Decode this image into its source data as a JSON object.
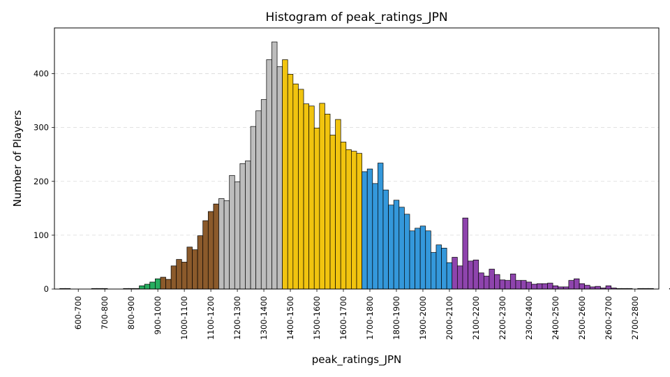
{
  "chart_data": {
    "type": "bar",
    "title": "Histogram of peak_ratings_JPN",
    "xlabel": "peak_ratings_JPN",
    "ylabel": "Number of Players",
    "ylim": [
      0,
      485
    ],
    "xlim": [
      560,
      2840
    ],
    "yticks": [
      0,
      100,
      200,
      300,
      400
    ],
    "xticks": [
      "600-700",
      "700-800",
      "800-900",
      "900-1000",
      "1000-1100",
      "1100-1200",
      "1200-1300",
      "1300-1400",
      "1400-1500",
      "1500-1600",
      "1600-1700",
      "1700-1800",
      "1800-1900",
      "1900-2000",
      "2000-2100",
      "2100-2200",
      "2200-2300",
      "2300-2400",
      "2400-2500",
      "2500-2600",
      "2600-2700",
      "2700-2800"
    ],
    "grid": "horizontal dashed",
    "bin_width": 20,
    "bin_start": 580,
    "values": [
      1,
      1,
      0,
      0,
      0,
      0,
      1,
      1,
      1,
      0,
      0,
      0,
      1,
      1,
      1,
      6,
      9,
      13,
      19,
      22,
      18,
      43,
      55,
      50,
      78,
      73,
      99,
      127,
      144,
      158,
      168,
      164,
      211,
      199,
      233,
      238,
      302,
      331,
      352,
      426,
      459,
      413,
      426,
      399,
      381,
      371,
      344,
      340,
      299,
      345,
      325,
      286,
      315,
      273,
      259,
      256,
      252,
      218,
      223,
      196,
      234,
      184,
      156,
      165,
      152,
      139,
      108,
      113,
      117,
      108,
      68,
      82,
      76,
      49,
      59,
      43,
      132,
      52,
      54,
      30,
      24,
      37,
      27,
      17,
      16,
      28,
      16,
      16,
      13,
      9,
      10,
      10,
      11,
      6,
      4,
      4,
      16,
      19,
      10,
      7,
      4,
      5,
      2,
      6,
      2,
      1,
      1,
      1,
      0,
      1,
      1,
      1,
      0,
      0,
      0,
      1,
      0,
      0
    ],
    "color_bands": [
      {
        "from": 580,
        "to": 840,
        "color": "#27ae60"
      },
      {
        "from": 840,
        "to": 960,
        "color": "#27ae60"
      },
      {
        "from": 960,
        "to": 1180,
        "color": "#8b5a2b"
      },
      {
        "from": 1180,
        "to": 1430,
        "color": "#bdbdbd"
      },
      {
        "from": 1430,
        "to": 1730,
        "color": "#f1c40f"
      },
      {
        "from": 1730,
        "to": 2060,
        "color": "#3498db"
      },
      {
        "from": 2060,
        "to": 2900,
        "color": "#8e44ad"
      }
    ]
  }
}
